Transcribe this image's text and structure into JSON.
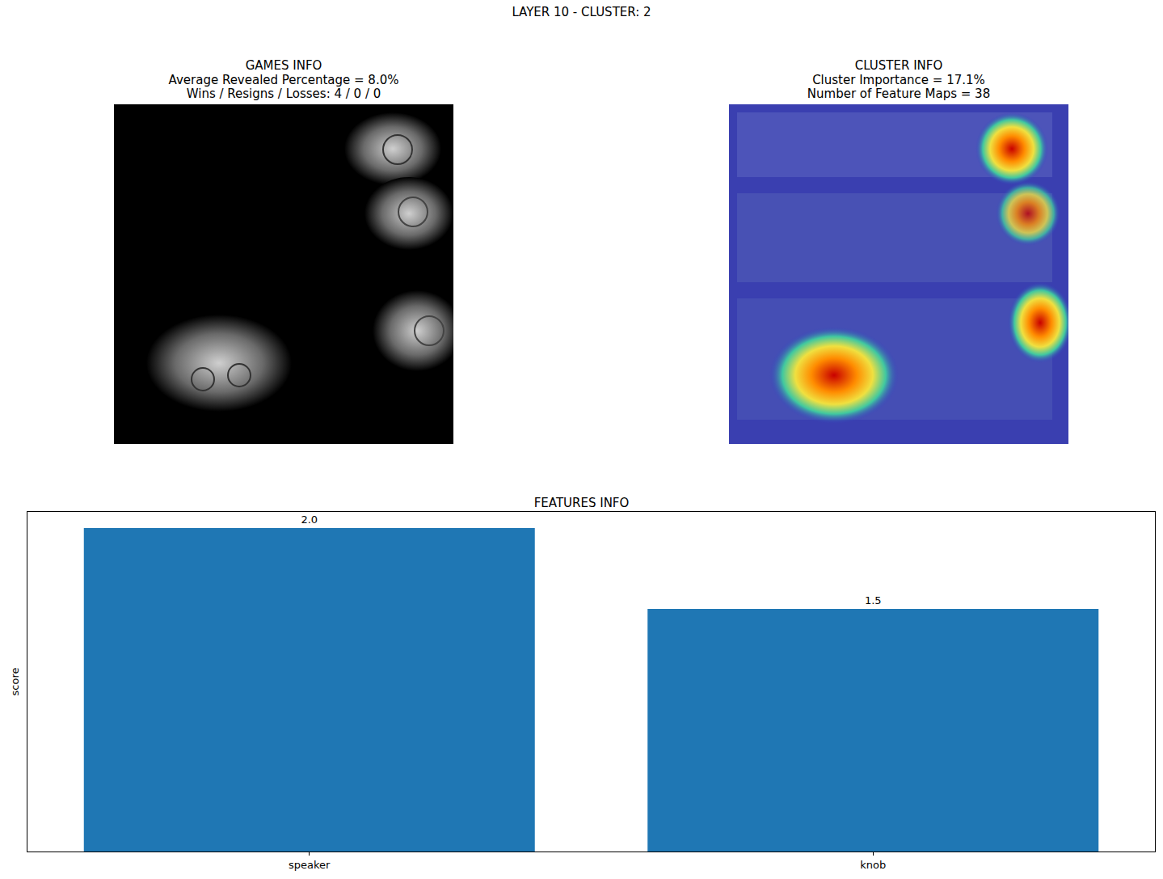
{
  "title": "LAYER 10 - CLUSTER: 2",
  "panels": [
    {
      "title": "GAMES INFO",
      "lines": [
        "Average Revealed Percentage = 8.0%",
        "Wins / Resigns / Losses: 4 / 0 / 0"
      ]
    },
    {
      "title": "CLUSTER INFO",
      "lines": [
        "Cluster Importance = 17.1%",
        "Number of Feature Maps = 38"
      ]
    }
  ],
  "chart_data": {
    "type": "bar",
    "title": "FEATURES INFO",
    "y_label": "score",
    "categories": [
      "speaker",
      "knob"
    ],
    "values": [
      2.0,
      1.5
    ],
    "value_labels": [
      "2.0",
      "1.5"
    ],
    "color": "#1f77b4",
    "ylim": [
      0,
      2.1
    ],
    "data_labels": true,
    "tick_labels": "x",
    "grid": false
  }
}
